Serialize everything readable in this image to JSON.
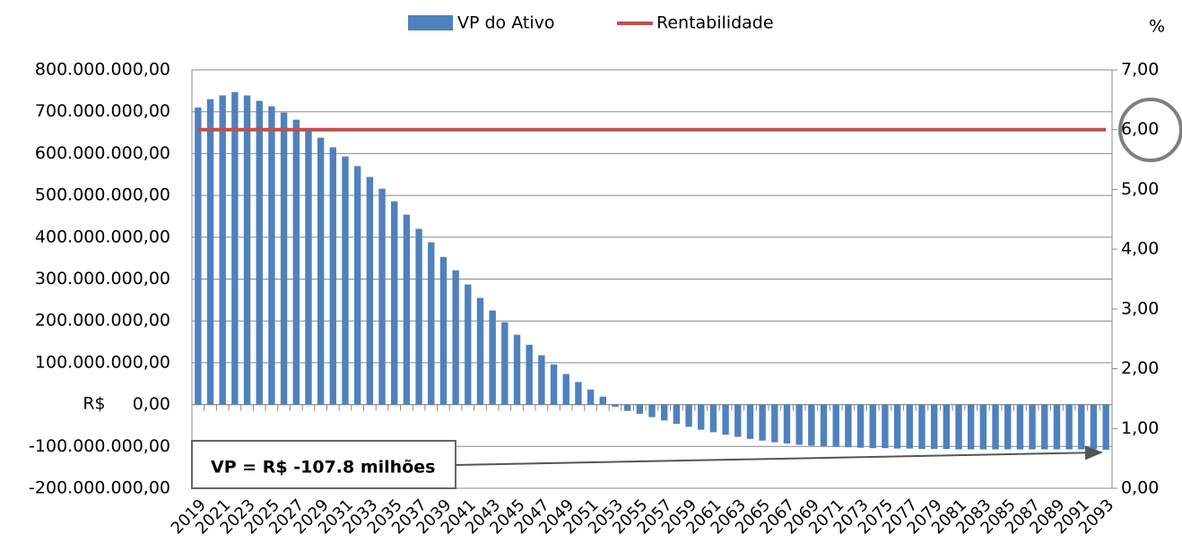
{
  "chart_data": {
    "type": "bar",
    "annotation": "VP = R$ -107.8 milhões",
    "y_label": "R$",
    "y2_label": "%",
    "categories": [
      "2019",
      null,
      "2021",
      null,
      "2023",
      null,
      "2025",
      null,
      "2027",
      null,
      "2029",
      null,
      "2031",
      null,
      "2033",
      null,
      "2035",
      null,
      "2037",
      null,
      "2039",
      null,
      "2041",
      null,
      "2043",
      null,
      "2045",
      null,
      "2047",
      null,
      "2049",
      null,
      "2051",
      null,
      "2053",
      null,
      "2055",
      null,
      "2057",
      null,
      "2059",
      null,
      "2061",
      null,
      "2063",
      null,
      "2065",
      null,
      "2067",
      null,
      "2069",
      null,
      "2071",
      null,
      "2073",
      null,
      "2075",
      null,
      "2077",
      null,
      "2079",
      null,
      "2081",
      null,
      "2083",
      null,
      "2085",
      null,
      "2087",
      null,
      "2089",
      null,
      "2091",
      null,
      "2093"
    ],
    "series": [
      {
        "name": "VP do Ativo",
        "type": "bar",
        "color": "#4f81bd",
        "values": [
          710000000,
          730000000,
          739000000,
          747000000,
          739000000,
          726000000,
          713000000,
          698000000,
          681000000,
          660000000,
          638000000,
          615000000,
          593000000,
          570000000,
          544000000,
          516000000,
          486000000,
          454000000,
          420000000,
          388000000,
          353000000,
          321000000,
          287000000,
          255000000,
          225000000,
          197000000,
          167000000,
          143000000,
          118000000,
          96000000,
          73000000,
          54000000,
          36000000,
          19000000,
          -5000000,
          -15000000,
          -22000000,
          -30000000,
          -38000000,
          -46000000,
          -53000000,
          -60000000,
          -66000000,
          -72000000,
          -77000000,
          -82000000,
          -86000000,
          -90000000,
          -93000000,
          -96000000,
          -98000000,
          -100000000,
          -101000000,
          -102000000,
          -103000000,
          -104000000,
          -104000000,
          -105000000,
          -105000000,
          -106000000,
          -106000000,
          -106000000,
          -107000000,
          -107000000,
          -107000000,
          -107000000,
          -107000000,
          -107000000,
          -107000000,
          -107000000,
          -107000000,
          -107000000,
          -107000000,
          -107000000,
          -107800000
        ]
      },
      {
        "name": "Rentabilidade",
        "type": "line",
        "axis": "y2",
        "color": "#c0504d",
        "values": [
          6,
          6,
          6,
          6,
          6,
          6,
          6,
          6,
          6,
          6,
          6,
          6,
          6,
          6,
          6,
          6,
          6,
          6,
          6,
          6,
          6,
          6,
          6,
          6,
          6,
          6,
          6,
          6,
          6,
          6,
          6,
          6,
          6,
          6,
          6,
          6,
          6,
          6,
          6,
          6,
          6,
          6,
          6,
          6,
          6,
          6,
          6,
          6,
          6,
          6,
          6,
          6,
          6,
          6,
          6,
          6,
          6,
          6,
          6,
          6,
          6,
          6,
          6,
          6,
          6,
          6,
          6,
          6,
          6,
          6,
          6,
          6,
          6,
          6,
          6
        ]
      }
    ],
    "ylim": [
      -200000000,
      800000000
    ],
    "yticks": [
      {
        "value": -200000000,
        "label": "-200.000.000,00"
      },
      {
        "value": -100000000,
        "label": "-100.000.000,00"
      },
      {
        "value": 0,
        "label": "0,00"
      },
      {
        "value": 100000000,
        "label": "100.000.000,00"
      },
      {
        "value": 200000000,
        "label": "200.000.000,00"
      },
      {
        "value": 300000000,
        "label": "300.000.000,00"
      },
      {
        "value": 400000000,
        "label": "400.000.000,00"
      },
      {
        "value": 500000000,
        "label": "500.000.000,00"
      },
      {
        "value": 600000000,
        "label": "600.000.000,00"
      },
      {
        "value": 700000000,
        "label": "700.000.000,00"
      },
      {
        "value": 800000000,
        "label": "800.000.000,00"
      }
    ],
    "y2lim": [
      0,
      7
    ],
    "y2ticks": [
      {
        "value": 0,
        "label": "0,00"
      },
      {
        "value": 1,
        "label": "1,00"
      },
      {
        "value": 2,
        "label": "2,00"
      },
      {
        "value": 3,
        "label": "3,00"
      },
      {
        "value": 4,
        "label": "4,00"
      },
      {
        "value": 5,
        "label": "5,00"
      },
      {
        "value": 6,
        "label": "6,00"
      },
      {
        "value": 7,
        "label": "7,00"
      }
    ],
    "grid": true
  }
}
